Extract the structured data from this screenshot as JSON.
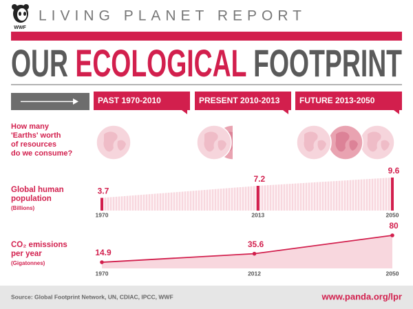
{
  "header": {
    "logo": "WWF",
    "title": "LIVING PLANET REPORT"
  },
  "headline": [
    "OUR",
    "ECOLOGICAL",
    "FOOTPRINT"
  ],
  "periods": [
    "PAST 1970-2010",
    "PRESENT 2010-2013",
    "FUTURE 2013-2050"
  ],
  "earths": {
    "question": [
      "How many",
      "'Earths' worth",
      "of resources",
      "do we consume?"
    ],
    "values": [
      1,
      1.5,
      3
    ]
  },
  "chart_data": [
    {
      "type": "bar",
      "title": [
        "Global human",
        "population"
      ],
      "unit": "(Billions)",
      "x": [
        1970,
        2013,
        2050
      ],
      "values": [
        3.7,
        7.2,
        9.6
      ],
      "xlim": [
        1970,
        2050
      ],
      "ylim": [
        0,
        10
      ],
      "color": "#d21f4d"
    },
    {
      "type": "line",
      "title": [
        "CO₂ emissions",
        "per year"
      ],
      "unit": "(Gigatonnes)",
      "x": [
        1970,
        2012,
        2050
      ],
      "values": [
        14.9,
        35.6,
        80
      ],
      "xlim": [
        1970,
        2050
      ],
      "ylim": [
        0,
        100
      ],
      "color": "#d21f4d"
    }
  ],
  "footer": {
    "source": "Source: Global Footprint Network, UN, CDIAC, IPCC, WWF",
    "url": "www.panda.org/lpr"
  }
}
